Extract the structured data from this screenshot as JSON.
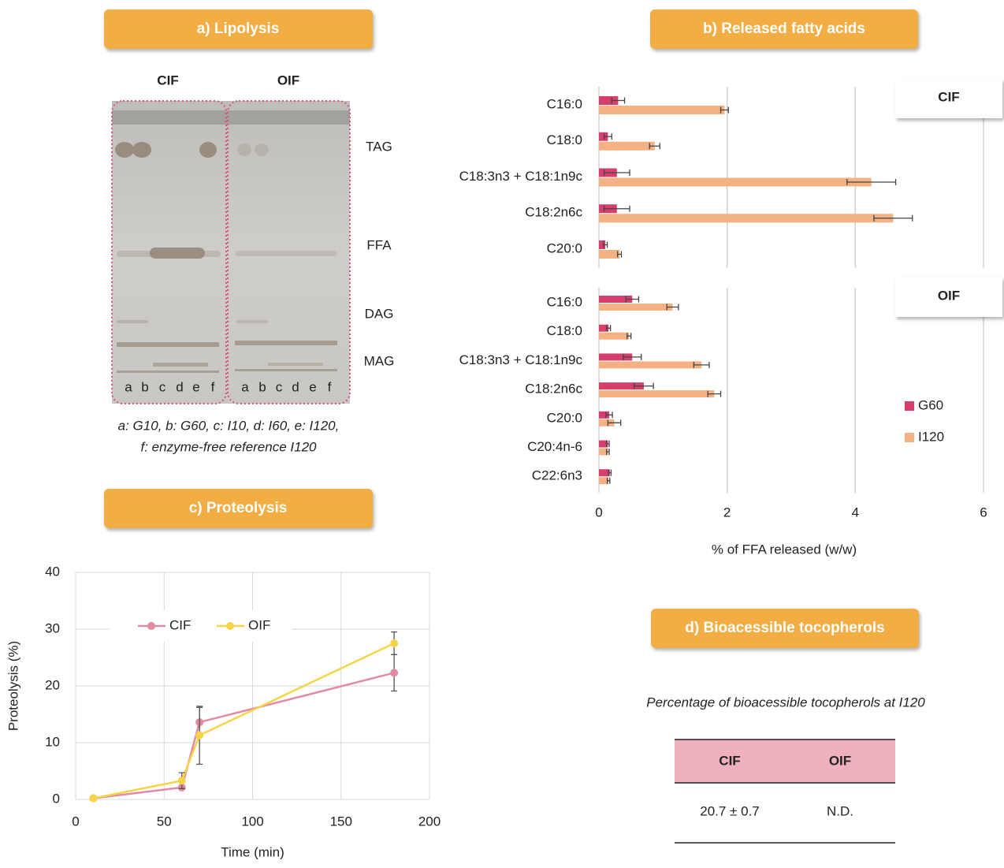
{
  "lipolysis": {
    "title": "a) Lipolysis",
    "samples": [
      "CIF",
      "OIF"
    ],
    "spots": [
      "TAG",
      "FFA",
      "DAG",
      "MAG"
    ],
    "lanes": [
      "a",
      "b",
      "c",
      "d",
      "e",
      "f"
    ],
    "caption": [
      "a: G10, b: G60, c: I10, d: I60, e: I120,",
      "f: enzyme-free reference I120"
    ]
  },
  "fatty_acids": {
    "title": "b) Released fatty acids"
  },
  "proteolysis": {
    "title": "c) Proteolysis"
  },
  "tocopherols": {
    "title": "d) Bioacessible tocopherols",
    "caption": "Percentage of bioacessible tocopherols at I120",
    "table": {
      "header": [
        "CIF",
        "OIF"
      ],
      "rows": [
        [
          "20.7 ± 0.7",
          "N.D."
        ]
      ]
    }
  },
  "chart_data": [
    {
      "type": "bar",
      "orientation": "horizontal",
      "title": "CIF",
      "categories": [
        "C16:0",
        "C18:0",
        "C18:3n3 + C18:1n9c",
        "C18:2n6c",
        "C20:0"
      ],
      "series": [
        {
          "color": "#d63f6b",
          "values": [
            0.3,
            0.14,
            0.28,
            0.28,
            0.1
          ],
          "errors": [
            0.1,
            0.06,
            0.2,
            0.2,
            0.03
          ]
        },
        {
          "color": "#f4b183",
          "values": [
            1.96,
            0.87,
            4.25,
            4.59,
            0.32
          ],
          "errors": [
            0.06,
            0.08,
            0.38,
            0.3,
            0.03
          ]
        }
      ],
      "xlim": [
        0,
        6
      ],
      "xticks": [
        0,
        2,
        4,
        6
      ],
      "grid": true
    },
    {
      "type": "bar",
      "orientation": "horizontal",
      "title": "OIF",
      "xlabel": "% of FFA released (w/w)",
      "categories": [
        "C16:0",
        "C18:0",
        "C18:3n3 + C18:1n9c",
        "C18:2n6c",
        "C20:0",
        "C20:4n-6",
        "C22:6n3"
      ],
      "series": [
        {
          "name": "G60",
          "color": "#d63f6b",
          "values": [
            0.52,
            0.15,
            0.52,
            0.7,
            0.16,
            0.14,
            0.17
          ],
          "errors": [
            0.1,
            0.03,
            0.14,
            0.15,
            0.05,
            0.02,
            0.02
          ]
        },
        {
          "name": "I120",
          "color": "#f4b183",
          "values": [
            1.15,
            0.47,
            1.6,
            1.8,
            0.24,
            0.14,
            0.15
          ],
          "errors": [
            0.09,
            0.03,
            0.12,
            0.1,
            0.1,
            0.02,
            0.02
          ]
        }
      ],
      "xlim": [
        0,
        6
      ],
      "xticks": [
        0,
        2,
        4,
        6
      ],
      "grid": true,
      "legend": "right"
    },
    {
      "type": "line",
      "xlabel": "Time (min)",
      "ylabel": "Proteolysis (%)",
      "x": [
        10,
        60,
        70,
        180
      ],
      "series": [
        {
          "name": "CIF",
          "color": "#e08aa3",
          "values": [
            0.2,
            2.1,
            13.6,
            22.3
          ],
          "errors": [
            0,
            0.3,
            2.6,
            3.2
          ]
        },
        {
          "name": "OIF",
          "color": "#f5d547",
          "values": [
            0.2,
            3.3,
            11.3,
            27.5
          ],
          "errors": [
            0,
            1.4,
            5.1,
            2
          ]
        }
      ],
      "xlim": [
        0,
        200
      ],
      "xticks": [
        0,
        50,
        100,
        150,
        200
      ],
      "ylim": [
        0,
        40
      ],
      "yticks": [
        0,
        10,
        20,
        30,
        40
      ],
      "grid": true,
      "legend": "top"
    }
  ]
}
